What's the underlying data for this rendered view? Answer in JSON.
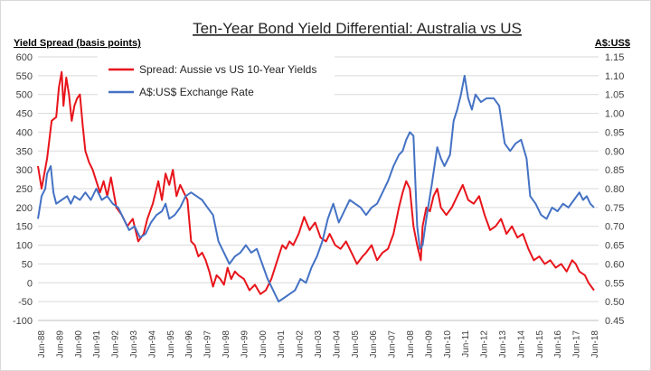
{
  "chart_data": {
    "type": "line",
    "title": "Ten-Year Bond Yield Differential:  Australia vs US",
    "ylabel_left": "Yield Spread (basis points)",
    "ylabel_right": "A$:US$",
    "ylim_left": [
      -100,
      600
    ],
    "yticks_left": [
      "-100",
      "-50",
      "0",
      "50",
      "100",
      "150",
      "200",
      "250",
      "300",
      "350",
      "400",
      "450",
      "500",
      "550",
      "600"
    ],
    "ylim_right": [
      0.45,
      1.15
    ],
    "yticks_right": [
      "0.45",
      "0.50",
      "0.55",
      "0.60",
      "0.65",
      "0.70",
      "0.75",
      "0.80",
      "0.85",
      "0.90",
      "0.95",
      "1.00",
      "1.05",
      "1.10",
      "1.15"
    ],
    "x_range": [
      1988.0,
      2018.75
    ],
    "x_tick_labels": [
      "Jun-88",
      "Jun-89",
      "Jun-90",
      "Jun-91",
      "Jun-92",
      "Jun-93",
      "Jun-94",
      "Jun-95",
      "Jun-96",
      "Jun-97",
      "Jun-98",
      "Jun-99",
      "Jun-00",
      "Jun-01",
      "Jun-02",
      "Jun-03",
      "Jun-04",
      "Jun-05",
      "Jun-06",
      "Jun-07",
      "Jun-08",
      "Jun-09",
      "Jun-10",
      "Jun-11",
      "Jun-12",
      "Jun-13",
      "Jun-14",
      "Jun-15",
      "Jun-16",
      "Jun-17",
      "Jun-18"
    ],
    "grid": true,
    "legend_position": "top-left",
    "series": [
      {
        "name": "Spread:  Aussie vs US 10-Year Yields",
        "axis": "left",
        "color": "#e8141b",
        "points": [
          [
            1988.0,
            310
          ],
          [
            1988.2,
            250
          ],
          [
            1988.5,
            330
          ],
          [
            1988.75,
            430
          ],
          [
            1989.0,
            440
          ],
          [
            1989.15,
            520
          ],
          [
            1989.3,
            560
          ],
          [
            1989.4,
            470
          ],
          [
            1989.55,
            545
          ],
          [
            1989.7,
            500
          ],
          [
            1989.85,
            430
          ],
          [
            1990.0,
            470
          ],
          [
            1990.15,
            490
          ],
          [
            1990.3,
            500
          ],
          [
            1990.45,
            420
          ],
          [
            1990.6,
            350
          ],
          [
            1990.8,
            320
          ],
          [
            1991.0,
            300
          ],
          [
            1991.2,
            270
          ],
          [
            1991.4,
            240
          ],
          [
            1991.6,
            270
          ],
          [
            1991.8,
            230
          ],
          [
            1992.0,
            280
          ],
          [
            1992.3,
            200
          ],
          [
            1992.6,
            180
          ],
          [
            1992.9,
            150
          ],
          [
            1993.2,
            170
          ],
          [
            1993.5,
            110
          ],
          [
            1993.8,
            130
          ],
          [
            1994.0,
            170
          ],
          [
            1994.3,
            210
          ],
          [
            1994.6,
            270
          ],
          [
            1994.8,
            220
          ],
          [
            1995.0,
            290
          ],
          [
            1995.2,
            260
          ],
          [
            1995.4,
            300
          ],
          [
            1995.6,
            230
          ],
          [
            1995.8,
            260
          ],
          [
            1996.0,
            240
          ],
          [
            1996.2,
            220
          ],
          [
            1996.4,
            110
          ],
          [
            1996.6,
            100
          ],
          [
            1996.8,
            70
          ],
          [
            1997.0,
            80
          ],
          [
            1997.2,
            60
          ],
          [
            1997.4,
            30
          ],
          [
            1997.6,
            -10
          ],
          [
            1997.8,
            20
          ],
          [
            1998.0,
            10
          ],
          [
            1998.2,
            -5
          ],
          [
            1998.4,
            40
          ],
          [
            1998.6,
            10
          ],
          [
            1998.8,
            30
          ],
          [
            1999.0,
            20
          ],
          [
            1999.3,
            10
          ],
          [
            1999.6,
            -20
          ],
          [
            1999.9,
            -5
          ],
          [
            2000.2,
            -30
          ],
          [
            2000.5,
            -20
          ],
          [
            2000.8,
            10
          ],
          [
            2001.0,
            40
          ],
          [
            2001.2,
            70
          ],
          [
            2001.4,
            100
          ],
          [
            2001.6,
            90
          ],
          [
            2001.8,
            110
          ],
          [
            2002.0,
            100
          ],
          [
            2002.3,
            130
          ],
          [
            2002.6,
            175
          ],
          [
            2002.9,
            140
          ],
          [
            2003.2,
            160
          ],
          [
            2003.5,
            120
          ],
          [
            2003.8,
            110
          ],
          [
            2004.0,
            130
          ],
          [
            2004.3,
            100
          ],
          [
            2004.6,
            90
          ],
          [
            2004.9,
            110
          ],
          [
            2005.2,
            80
          ],
          [
            2005.5,
            50
          ],
          [
            2005.8,
            70
          ],
          [
            2006.0,
            80
          ],
          [
            2006.3,
            100
          ],
          [
            2006.6,
            60
          ],
          [
            2006.9,
            80
          ],
          [
            2007.2,
            90
          ],
          [
            2007.5,
            130
          ],
          [
            2007.8,
            200
          ],
          [
            2008.0,
            240
          ],
          [
            2008.2,
            270
          ],
          [
            2008.4,
            250
          ],
          [
            2008.6,
            150
          ],
          [
            2008.8,
            100
          ],
          [
            2008.9,
            80
          ],
          [
            2009.0,
            60
          ],
          [
            2009.1,
            150
          ],
          [
            2009.3,
            200
          ],
          [
            2009.5,
            190
          ],
          [
            2009.7,
            230
          ],
          [
            2009.9,
            250
          ],
          [
            2010.1,
            200
          ],
          [
            2010.4,
            180
          ],
          [
            2010.7,
            200
          ],
          [
            2011.0,
            230
          ],
          [
            2011.3,
            260
          ],
          [
            2011.6,
            220
          ],
          [
            2011.9,
            210
          ],
          [
            2012.2,
            230
          ],
          [
            2012.5,
            180
          ],
          [
            2012.8,
            140
          ],
          [
            2013.1,
            150
          ],
          [
            2013.4,
            170
          ],
          [
            2013.7,
            130
          ],
          [
            2014.0,
            150
          ],
          [
            2014.3,
            120
          ],
          [
            2014.6,
            130
          ],
          [
            2014.9,
            90
          ],
          [
            2015.2,
            60
          ],
          [
            2015.5,
            70
          ],
          [
            2015.8,
            50
          ],
          [
            2016.1,
            60
          ],
          [
            2016.4,
            40
          ],
          [
            2016.7,
            50
          ],
          [
            2017.0,
            30
          ],
          [
            2017.3,
            60
          ],
          [
            2017.5,
            50
          ],
          [
            2017.7,
            30
          ],
          [
            2018.0,
            20
          ],
          [
            2018.2,
            0
          ],
          [
            2018.5,
            -20
          ]
        ]
      },
      {
        "name": "A$:US$ Exchange Rate",
        "axis": "right",
        "color": "#4472c4",
        "points": [
          [
            1988.0,
            0.72
          ],
          [
            1988.2,
            0.78
          ],
          [
            1988.4,
            0.8
          ],
          [
            1988.5,
            0.84
          ],
          [
            1988.7,
            0.86
          ],
          [
            1988.85,
            0.79
          ],
          [
            1989.0,
            0.76
          ],
          [
            1989.3,
            0.77
          ],
          [
            1989.6,
            0.78
          ],
          [
            1989.8,
            0.76
          ],
          [
            1990.0,
            0.78
          ],
          [
            1990.3,
            0.77
          ],
          [
            1990.6,
            0.79
          ],
          [
            1990.9,
            0.77
          ],
          [
            1991.2,
            0.8
          ],
          [
            1991.5,
            0.77
          ],
          [
            1991.8,
            0.78
          ],
          [
            1992.1,
            0.76
          ],
          [
            1992.4,
            0.75
          ],
          [
            1992.7,
            0.72
          ],
          [
            1993.0,
            0.69
          ],
          [
            1993.3,
            0.7
          ],
          [
            1993.6,
            0.67
          ],
          [
            1993.9,
            0.68
          ],
          [
            1994.2,
            0.71
          ],
          [
            1994.5,
            0.73
          ],
          [
            1994.8,
            0.74
          ],
          [
            1995.0,
            0.76
          ],
          [
            1995.2,
            0.72
          ],
          [
            1995.5,
            0.73
          ],
          [
            1995.8,
            0.75
          ],
          [
            1996.1,
            0.78
          ],
          [
            1996.4,
            0.79
          ],
          [
            1996.7,
            0.78
          ],
          [
            1997.0,
            0.77
          ],
          [
            1997.3,
            0.75
          ],
          [
            1997.6,
            0.73
          ],
          [
            1997.9,
            0.66
          ],
          [
            1998.2,
            0.63
          ],
          [
            1998.5,
            0.6
          ],
          [
            1998.8,
            0.62
          ],
          [
            1999.1,
            0.63
          ],
          [
            1999.4,
            0.65
          ],
          [
            1999.7,
            0.63
          ],
          [
            2000.0,
            0.64
          ],
          [
            2000.3,
            0.6
          ],
          [
            2000.6,
            0.56
          ],
          [
            2000.9,
            0.53
          ],
          [
            2001.2,
            0.5
          ],
          [
            2001.5,
            0.51
          ],
          [
            2001.8,
            0.52
          ],
          [
            2002.1,
            0.53
          ],
          [
            2002.4,
            0.56
          ],
          [
            2002.7,
            0.55
          ],
          [
            2003.0,
            0.59
          ],
          [
            2003.3,
            0.62
          ],
          [
            2003.6,
            0.66
          ],
          [
            2003.9,
            0.72
          ],
          [
            2004.2,
            0.76
          ],
          [
            2004.5,
            0.71
          ],
          [
            2004.8,
            0.74
          ],
          [
            2005.1,
            0.77
          ],
          [
            2005.4,
            0.76
          ],
          [
            2005.7,
            0.75
          ],
          [
            2006.0,
            0.73
          ],
          [
            2006.3,
            0.75
          ],
          [
            2006.6,
            0.76
          ],
          [
            2006.9,
            0.79
          ],
          [
            2007.2,
            0.82
          ],
          [
            2007.5,
            0.86
          ],
          [
            2007.8,
            0.89
          ],
          [
            2008.0,
            0.9
          ],
          [
            2008.2,
            0.93
          ],
          [
            2008.4,
            0.95
          ],
          [
            2008.6,
            0.94
          ],
          [
            2008.8,
            0.7
          ],
          [
            2008.95,
            0.64
          ],
          [
            2009.1,
            0.65
          ],
          [
            2009.3,
            0.72
          ],
          [
            2009.6,
            0.81
          ],
          [
            2009.9,
            0.91
          ],
          [
            2010.1,
            0.88
          ],
          [
            2010.3,
            0.86
          ],
          [
            2010.6,
            0.89
          ],
          [
            2010.8,
            0.98
          ],
          [
            2011.0,
            1.01
          ],
          [
            2011.2,
            1.05
          ],
          [
            2011.4,
            1.1
          ],
          [
            2011.6,
            1.04
          ],
          [
            2011.8,
            1.01
          ],
          [
            2012.0,
            1.05
          ],
          [
            2012.3,
            1.03
          ],
          [
            2012.6,
            1.04
          ],
          [
            2013.0,
            1.04
          ],
          [
            2013.3,
            1.02
          ],
          [
            2013.6,
            0.92
          ],
          [
            2013.9,
            0.9
          ],
          [
            2014.2,
            0.92
          ],
          [
            2014.5,
            0.93
          ],
          [
            2014.8,
            0.88
          ],
          [
            2015.0,
            0.78
          ],
          [
            2015.3,
            0.76
          ],
          [
            2015.6,
            0.73
          ],
          [
            2015.9,
            0.72
          ],
          [
            2016.2,
            0.75
          ],
          [
            2016.5,
            0.74
          ],
          [
            2016.8,
            0.76
          ],
          [
            2017.1,
            0.75
          ],
          [
            2017.4,
            0.77
          ],
          [
            2017.7,
            0.79
          ],
          [
            2017.9,
            0.77
          ],
          [
            2018.1,
            0.78
          ],
          [
            2018.3,
            0.76
          ],
          [
            2018.5,
            0.75
          ]
        ]
      }
    ]
  }
}
